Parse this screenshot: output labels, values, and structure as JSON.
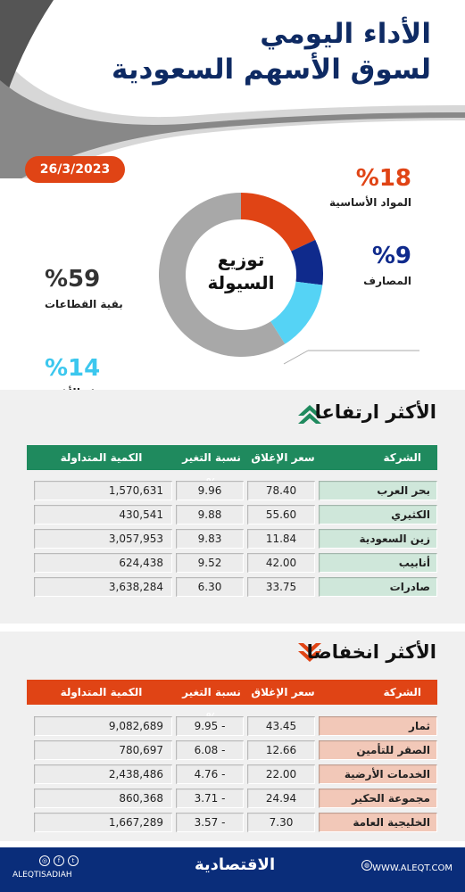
{
  "header": {
    "title_line1": "الأداء اليومي",
    "title_line2": "لسوق الأسهم السعودية"
  },
  "date": "26/3/2023",
  "colors": {
    "materials": "#e04415",
    "banks": "#0f2a8c",
    "food": "#55d3f5",
    "others": "#a8a8a8",
    "rise_header": "#1f8a5e",
    "fall_header": "#e04415",
    "rise_name": "#cfe7da",
    "fall_name": "#f2c8b8"
  },
  "chart_data": {
    "type": "pie",
    "title": "توزيع السيولة",
    "slices": [
      {
        "label": "المواد الأساسية",
        "value": 18,
        "display": "%18"
      },
      {
        "label": "المصارف",
        "value": 9,
        "display": "%9"
      },
      {
        "label": "تجزئة الأغذية",
        "value": 14,
        "display": "%14"
      },
      {
        "label": "بقية القطاعات",
        "value": 59,
        "display": "%59"
      }
    ]
  },
  "rise": {
    "title": "الأكثر ارتفاعا",
    "headers": {
      "name": "الشركة",
      "close": "سعر الإغلاق",
      "chg": "نسبة التغير %",
      "qty": "الكمية المتداولة"
    },
    "rows": [
      {
        "name": "بحر العرب",
        "close": "78.40",
        "chg": "9.96",
        "qty": "1,570,631"
      },
      {
        "name": "الكثيري",
        "close": "55.60",
        "chg": "9.88",
        "qty": "430,541"
      },
      {
        "name": "زين السعودية",
        "close": "11.84",
        "chg": "9.83",
        "qty": "3,057,953"
      },
      {
        "name": "أنابيب",
        "close": "42.00",
        "chg": "9.52",
        "qty": "624,438"
      },
      {
        "name": "صادرات",
        "close": "33.75",
        "chg": "6.30",
        "qty": "3,638,284"
      }
    ]
  },
  "fall": {
    "title": "الأكثر انخفاضا",
    "headers": {
      "name": "الشركة",
      "close": "سعر الإغلاق",
      "chg": "نسبة التغير %",
      "qty": "الكمية المتداولة"
    },
    "rows": [
      {
        "name": "ثمار",
        "close": "43.45",
        "chg": "- 9.95",
        "qty": "9,082,689"
      },
      {
        "name": "الصقر للتأمين",
        "close": "12.66",
        "chg": "- 6.08",
        "qty": "780,697"
      },
      {
        "name": "الخدمات الأرضية",
        "close": "22.00",
        "chg": "- 4.76",
        "qty": "2,438,486"
      },
      {
        "name": "مجموعة الحكير",
        "close": "24.94",
        "chg": "- 3.71",
        "qty": "860,368"
      },
      {
        "name": "الخليجية العامة",
        "close": "7.30",
        "chg": "- 3.57",
        "qty": "1,667,289"
      }
    ]
  },
  "footer": {
    "site": "WWW.ALEQT.COM",
    "handle": "ALEQTISADIAH",
    "logo": "الاقتصادية"
  }
}
